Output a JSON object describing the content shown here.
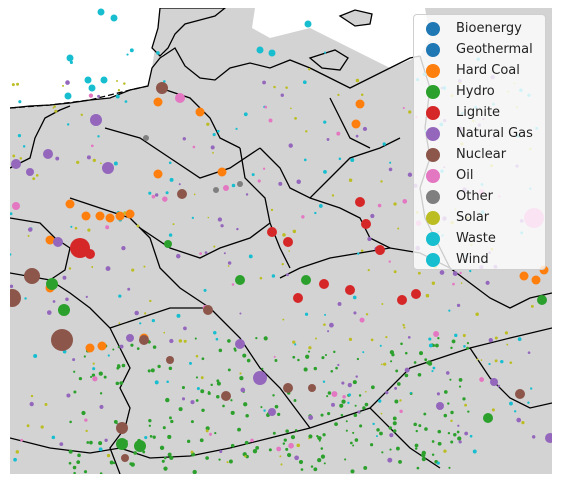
{
  "legend": {
    "items": [
      {
        "label": "Bioenergy",
        "color": "#1f77b4"
      },
      {
        "label": "Geothermal",
        "color": "#1f77b4"
      },
      {
        "label": "Hard Coal",
        "color": "#ff7f0e"
      },
      {
        "label": "Hydro",
        "color": "#2ca02c"
      },
      {
        "label": "Lignite",
        "color": "#d62728"
      },
      {
        "label": "Natural Gas",
        "color": "#9467bd"
      },
      {
        "label": "Nuclear",
        "color": "#8c564b"
      },
      {
        "label": "Oil",
        "color": "#e377c2"
      },
      {
        "label": "Other",
        "color": "#7f7f7f"
      },
      {
        "label": "Solar",
        "color": "#bcbd22"
      },
      {
        "label": "Waste",
        "color": "#17becf"
      },
      {
        "label": "Wind",
        "color": "#17becf"
      }
    ]
  },
  "colors": {
    "land": "#d3d3d3",
    "sea": "#ffffff",
    "border": "#000000"
  }
}
